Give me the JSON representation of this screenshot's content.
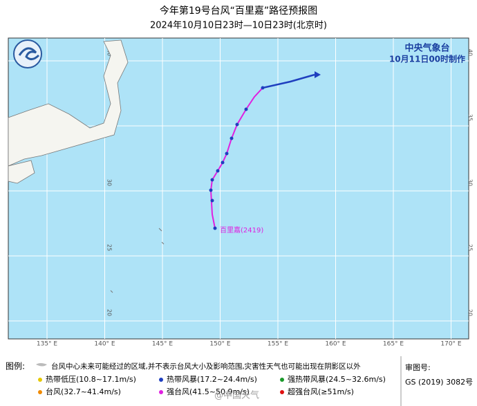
{
  "header": {
    "title": "今年第19号台风“百里嘉”路径预报图",
    "subtitle": "2024年10月10日23时—10日23时(北京时)"
  },
  "issuer": {
    "org": "中央气象台",
    "time": "10月11日00时制作"
  },
  "map": {
    "lon_labels": [
      "135° E",
      "140° E",
      "145° E",
      "150° E",
      "155° E",
      "160° E",
      "165° E",
      "170° E"
    ],
    "lat_labels": [
      "40",
      "35",
      "30",
      "25",
      "20"
    ],
    "typhoon_label": "百里嘉(2419)"
  },
  "legend": {
    "title": "图例:",
    "note": "台风中心未来可能经过的区域,并不表示台风大小及影响范围,灾害性天气也可能出现在阴影区以外",
    "items": [
      {
        "name": "热带低压(10.8~17.1m/s)",
        "color": "#e6c800"
      },
      {
        "name": "热带风暴(17.2~24.4m/s)",
        "color": "#1f3fbf"
      },
      {
        "name": "强热带风暴(24.5~32.6m/s)",
        "color": "#1a9a2a"
      },
      {
        "name": "台风(32.7~41.4m/s)",
        "color": "#f08a00"
      },
      {
        "name": "强台风(41.5~50.9m/s)",
        "color": "#e020e0"
      },
      {
        "name": "超强台风(≥51m/s)",
        "color": "#e01010"
      }
    ]
  },
  "approval": {
    "label": "审图号:",
    "code": "GS (2019) 3082号"
  },
  "watermark": "@中国天气"
}
